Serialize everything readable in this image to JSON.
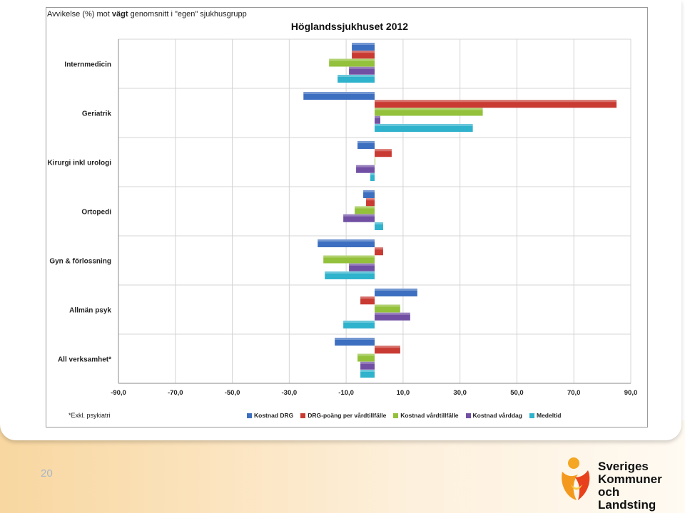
{
  "slide": {
    "number": "20"
  },
  "header": {
    "prefix": "Avvikelse (%) mot",
    "bold": "vägt",
    "suffix": "genomsnitt i \"egen\" sjukhusgrupp"
  },
  "footnote": "*Exkl. psykiatri",
  "logo": {
    "line1": "Sveriges",
    "line2": "Kommuner",
    "line3": "och Landsting"
  },
  "colors": {
    "Kostnad DRG": "#3d6fc0",
    "DRG-poäng per vårdtillfälle": "#c83a32",
    "Kostnad vårdtillfälle": "#93c13b",
    "Kostnad vårddag": "#7150a4",
    "Medeltid": "#2fb2cc"
  },
  "chart_data": {
    "type": "bar",
    "orientation": "horizontal",
    "title": "Höglandssjukhuset 2012",
    "xlim": [
      -90,
      90
    ],
    "xticks": [
      "-90,0",
      "-70,0",
      "-50,0",
      "-30,0",
      "-10,0",
      "10,0",
      "30,0",
      "50,0",
      "70,0",
      "90,0"
    ],
    "grid": true,
    "legend_position": "bottom",
    "categories": [
      "Internmedicin",
      "Geriatrik",
      "Kirurgi inkl urologi",
      "Ortopedi",
      "Gyn & förlossning",
      "Allmän psyk",
      "All verksamhet*"
    ],
    "series": [
      {
        "name": "Kostnad DRG",
        "values": [
          -8,
          -25,
          -6,
          -4,
          -20,
          15,
          -14
        ]
      },
      {
        "name": "DRG-poäng per vårdtillfälle",
        "values": [
          -8,
          85,
          6,
          -3,
          3,
          -5,
          9
        ]
      },
      {
        "name": "Kostnad vårdtillfälle",
        "values": [
          -16,
          38,
          0,
          -7,
          -18,
          9,
          -6
        ]
      },
      {
        "name": "Kostnad vårddag",
        "values": [
          -9,
          2,
          -6.5,
          -11,
          -9,
          12.5,
          -5
        ]
      },
      {
        "name": "Medeltid",
        "values": [
          -13,
          34.5,
          -1.5,
          3,
          -17.5,
          -11,
          -5
        ]
      }
    ]
  }
}
